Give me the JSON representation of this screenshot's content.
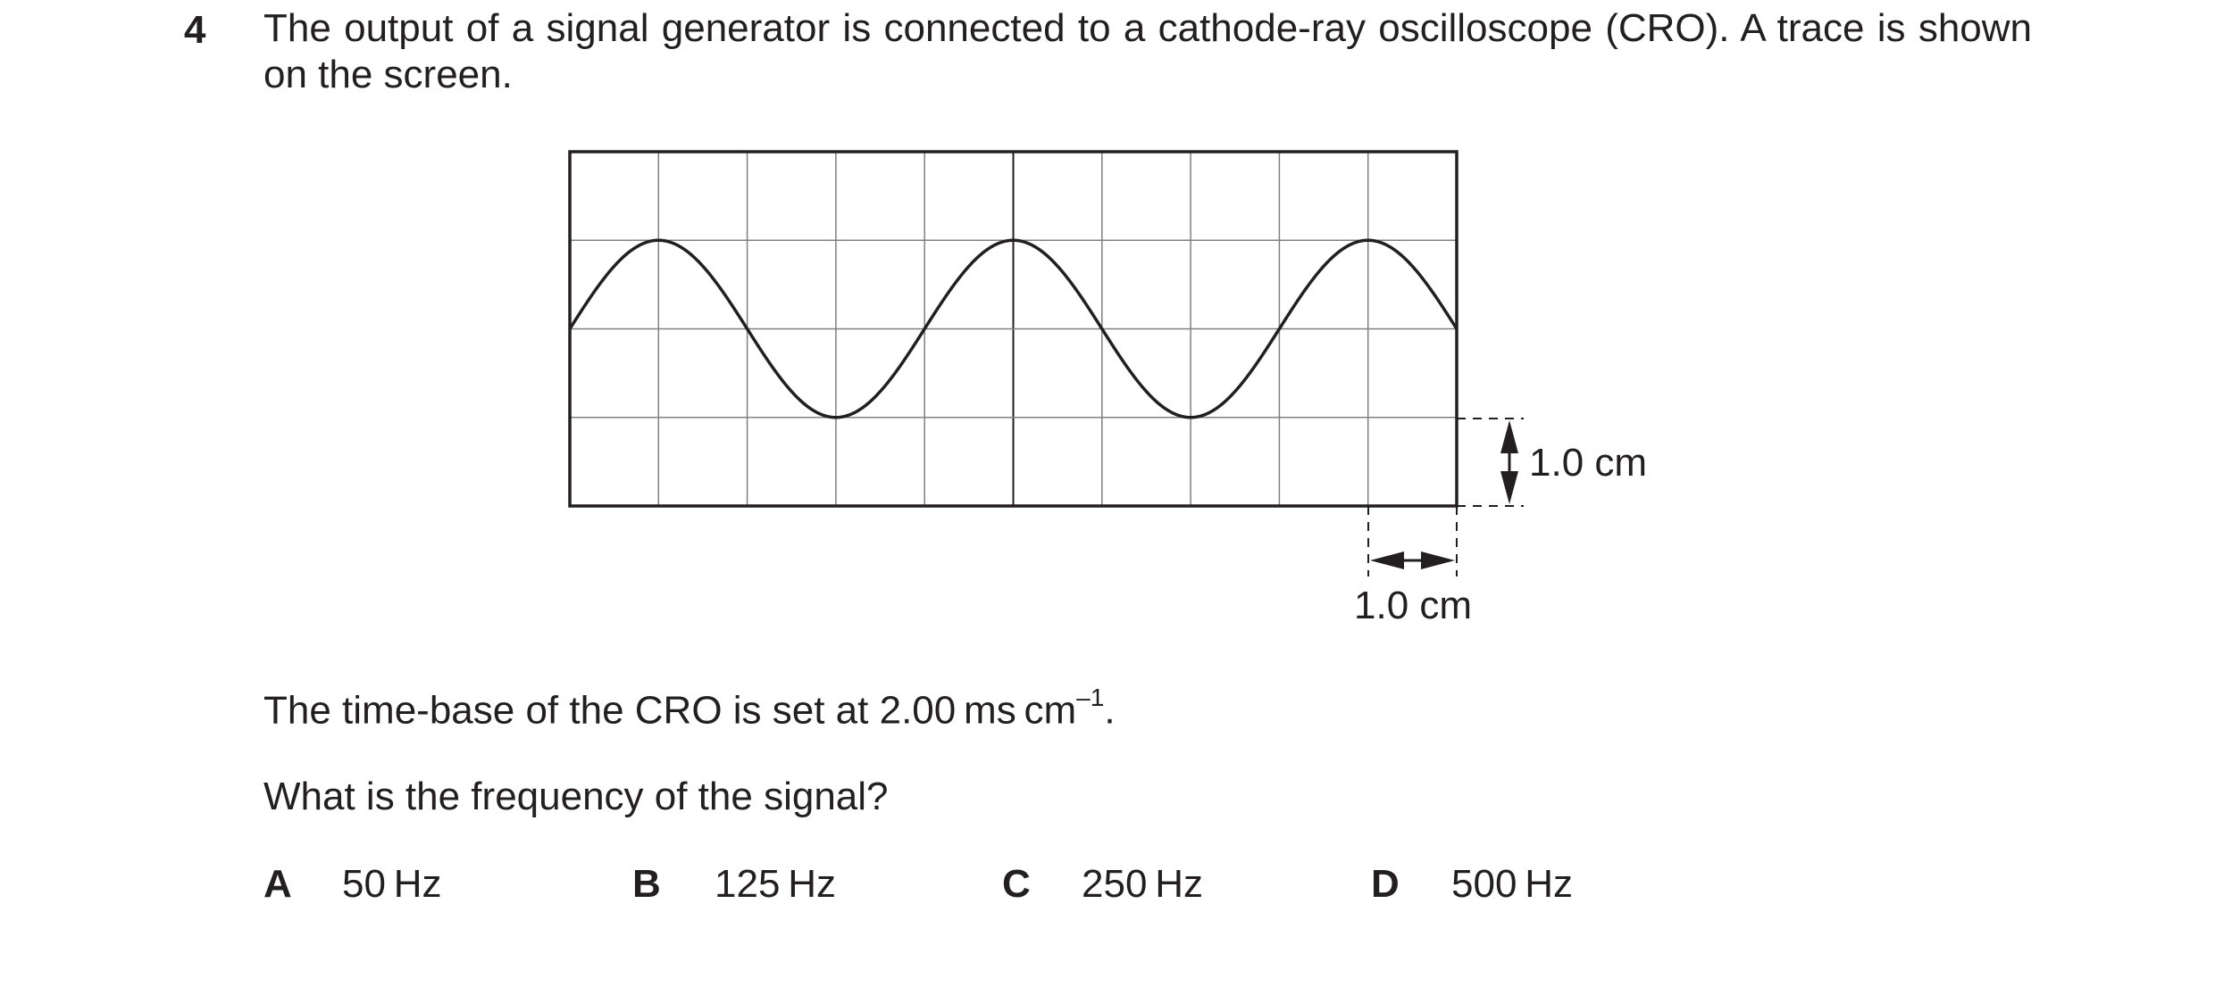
{
  "question": {
    "number": "4",
    "stem": "The output of a signal generator is connected to a cathode-ray oscilloscope (CRO). A trace is shown on the screen."
  },
  "figure": {
    "vertical_scale_label": "1.0 cm",
    "horizontal_scale_label": "1.0 cm",
    "grid_columns": 10,
    "grid_rows": 4,
    "wave_cycles_shown": 2.5,
    "wave_amplitude_divisions": 1,
    "colors": {
      "line": "#231f20",
      "grid": "#808080"
    }
  },
  "timebase": {
    "text": "The time-base of the CRO is set at 2.00 ms cm",
    "superscript": "–1",
    "suffix": "."
  },
  "prompt": "What is the frequency of the signal?",
  "options": [
    {
      "letter": "A",
      "text": "50 Hz"
    },
    {
      "letter": "B",
      "text": "125 Hz"
    },
    {
      "letter": "C",
      "text": "250 Hz"
    },
    {
      "letter": "D",
      "text": "500 Hz"
    }
  ]
}
